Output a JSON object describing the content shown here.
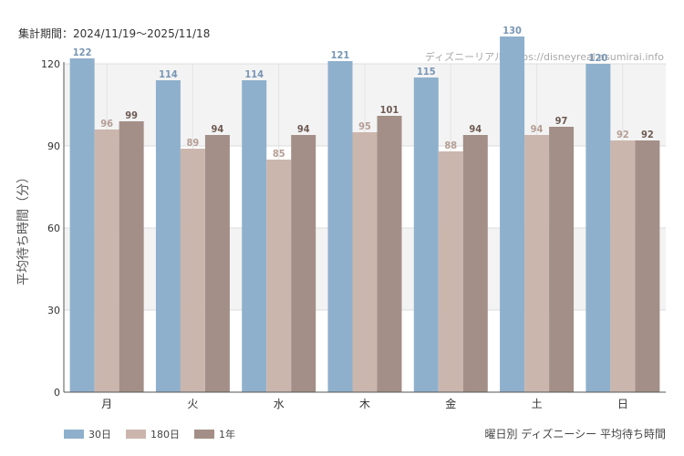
{
  "header": {
    "period": "集計期間：2024/11/19〜2025/11/18",
    "watermark": "ディズニーリアル  https://disneyreal.asumirai.info"
  },
  "footer": {
    "caption": "曜日別 ディズニーシー 平均待ち時間"
  },
  "chart_data": {
    "type": "bar",
    "title": "曜日別 ディズニーシー 平均待ち時間",
    "ylabel": "平均待ち時間（分）",
    "xlabel": "",
    "ylim": [
      0,
      120
    ],
    "yticks": [
      0,
      30,
      60,
      90,
      120
    ],
    "grid": true,
    "legend_position": "bottom-left",
    "categories": [
      "月",
      "火",
      "水",
      "木",
      "金",
      "土",
      "日"
    ],
    "series": [
      {
        "name": "30日",
        "color": "#8fb0cc",
        "label_color": "#7896b4",
        "values": [
          122,
          114,
          114,
          121,
          115,
          130,
          120
        ]
      },
      {
        "name": "180日",
        "color": "#cbb6ae",
        "label_color": "#b59e95",
        "values": [
          96,
          89,
          85,
          95,
          88,
          94,
          92
        ]
      },
      {
        "name": "1年",
        "color": "#a38f87",
        "label_color": "#6e5b53",
        "values": [
          99,
          94,
          94,
          101,
          94,
          97,
          92
        ]
      }
    ]
  }
}
